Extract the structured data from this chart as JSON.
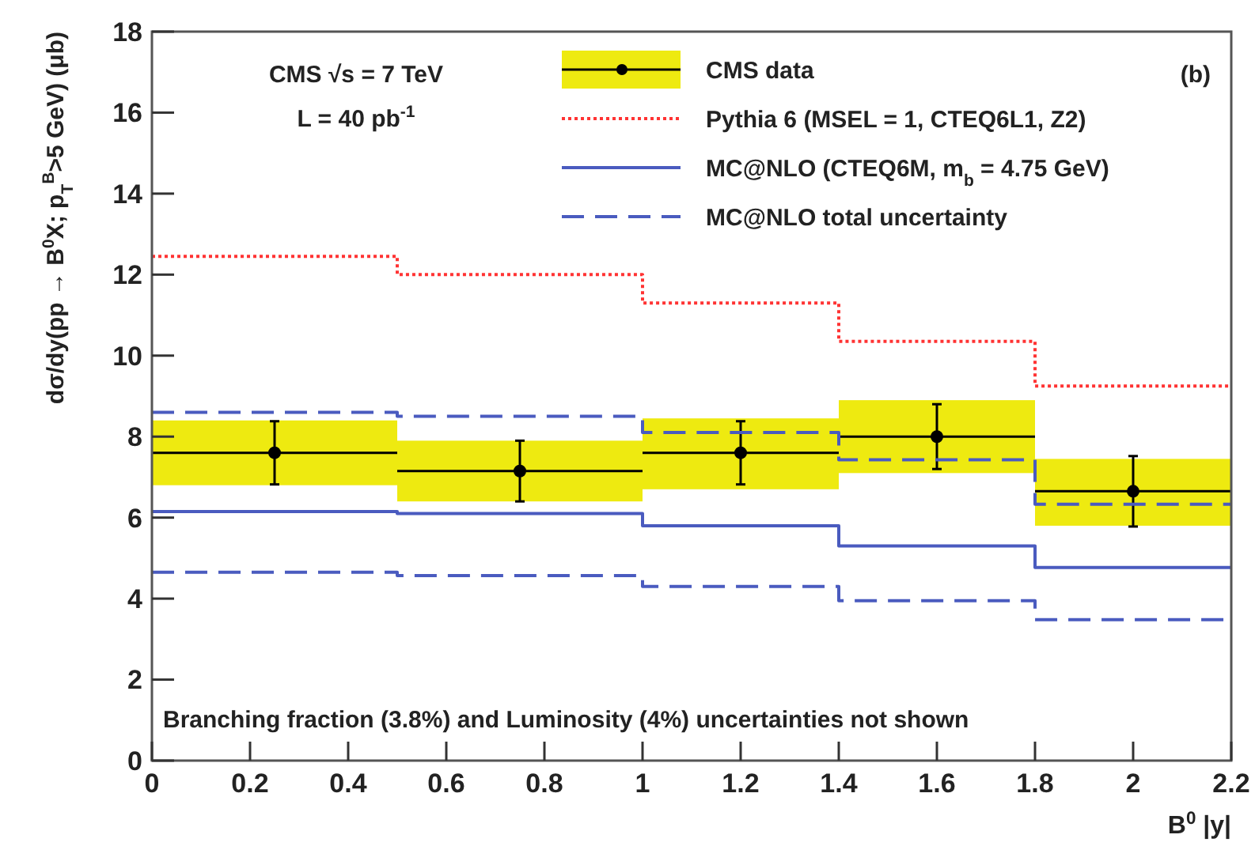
{
  "chart_data": {
    "type": "step",
    "xlabel": "B$^{0}$ |y|",
    "ylabel": "dσ/dy(pp → B$^{0}$X; p$_{T}$$^{B}$>5 GeV) (μb)",
    "xlim": [
      0,
      2.2
    ],
    "xticks": [
      0,
      0.2,
      0.4,
      0.6,
      0.8,
      1,
      1.2,
      1.4,
      1.6,
      1.8,
      2,
      2.2
    ],
    "ylim": [
      0,
      18
    ],
    "yticks": [
      0,
      2,
      4,
      6,
      8,
      10,
      12,
      14,
      16,
      18
    ],
    "grid": false,
    "legend": "top right",
    "annotations": [
      "CMS  √s = 7 TeV",
      "L = 40 pb$^{-1}$",
      "(b)",
      "Branching fraction (3.8%) and Luminosity (4%) uncertainties not shown"
    ],
    "series": [
      {
        "type": "bar",
        "color": "#eeea10",
        "x": [
          0.25,
          0.75,
          1.2,
          1.6,
          2.0
        ],
        "base": [
          6.8,
          6.4,
          6.7,
          7.1,
          5.8
        ],
        "values": [
          1.6,
          1.5,
          1.75,
          1.8,
          1.65
        ],
        "xerrors": [
          0.25,
          0.25,
          0.2,
          0.2,
          0.2
        ]
      },
      {
        "name": "CMS data",
        "type": "scatter",
        "color": "#000000",
        "marker": "circle",
        "x": [
          0.25,
          0.75,
          1.2,
          1.6,
          2.0
        ],
        "values": [
          7.6,
          7.15,
          7.6,
          8.0,
          6.65
        ],
        "errors": [
          0.78,
          0.75,
          0.78,
          0.8,
          0.87
        ],
        "xerrors": [
          0.25,
          0.25,
          0.2,
          0.2,
          0.2
        ]
      },
      {
        "name": "Pythia 6 (MSEL = 1, CTEQ6L1, Z2)",
        "color": "#ff3333",
        "line_style": "dotted",
        "x": [
          0,
          0.5,
          1,
          1.4,
          1.8,
          2.2
        ],
        "values": [
          12.45,
          12.0,
          11.3,
          10.35,
          9.25,
          9.25
        ]
      },
      {
        "name": "MC@NLO (CTEQ6M, m$_{b}$ = 4.75 GeV)",
        "color": "#4a5bbf",
        "line_style": "solid",
        "x": [
          0,
          0.5,
          1,
          1.4,
          1.8,
          2.2
        ],
        "values": [
          6.15,
          6.1,
          5.8,
          5.3,
          4.77,
          4.77
        ]
      },
      {
        "name": "MC@NLO total uncertainty",
        "color": "#4a5bbf",
        "line_style": "dashed",
        "x": [
          0,
          0.5,
          1,
          1.4,
          1.8,
          2.2
        ],
        "values": [
          8.6,
          8.5,
          8.1,
          7.43,
          6.33,
          6.33
        ]
      },
      {
        "color": "#4a5bbf",
        "line_style": "dashed",
        "x": [
          0,
          0.5,
          1,
          1.4,
          1.8,
          2.2
        ],
        "values": [
          4.65,
          4.57,
          4.3,
          3.95,
          3.48,
          3.48
        ]
      }
    ]
  }
}
